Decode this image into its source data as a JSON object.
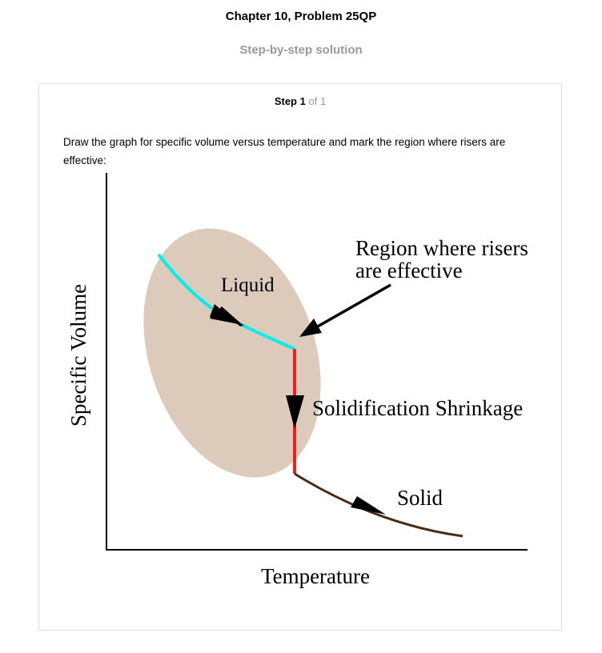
{
  "header": {
    "chapter_title": "Chapter 10, Problem 25QP",
    "subtitle": "Step-by-step solution"
  },
  "step": {
    "label": "Step",
    "number": "1",
    "of_total": "of 1",
    "text": "Draw the graph for specific volume versus temperature and mark the region where risers are effective:"
  },
  "diagram": {
    "y_axis_label": "Specific Volume",
    "x_axis_label": "Temperature",
    "liquid_label": "Liquid",
    "shrinkage_label": "Solidification Shrinkage",
    "solid_label": "Solid",
    "region_label_line1": "Region where risers",
    "region_label_line2": "are effective",
    "colors": {
      "region_fill": "#dccbbb",
      "liquid_curve": "#00eeee",
      "shrinkage_line": "#ff1a1a",
      "solid_curve": "#4a2a10",
      "axes": "#000000"
    }
  }
}
